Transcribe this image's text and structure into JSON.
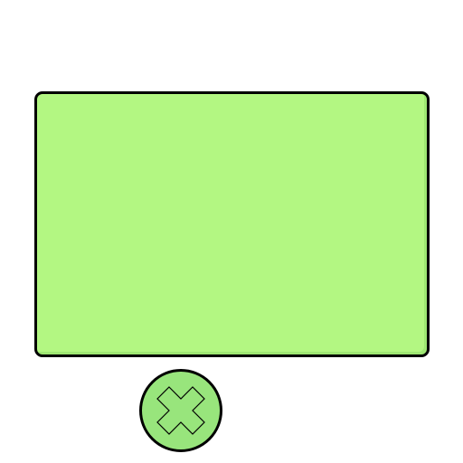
{
  "panel": {
    "fill": "#b3f782",
    "border": "#000000"
  },
  "close_button": {
    "icon": "close-icon",
    "fill": "#98e57c",
    "border": "#000000"
  }
}
